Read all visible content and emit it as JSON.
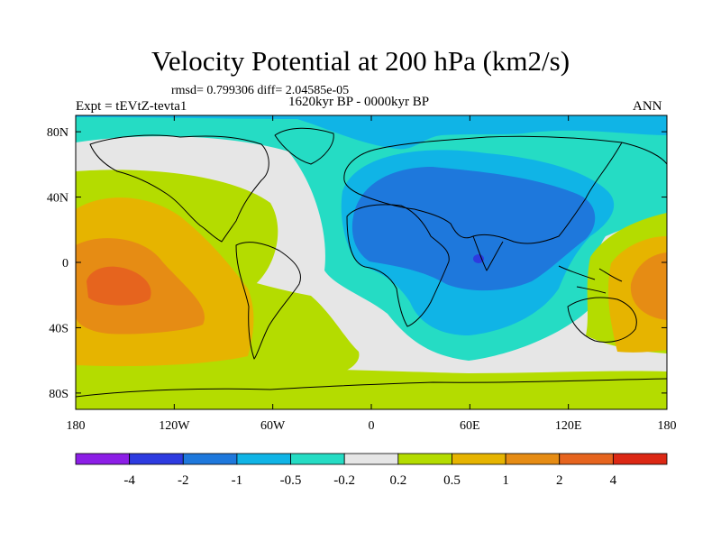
{
  "chart_data": {
    "type": "filled contour map",
    "title": "Velocity Potential at 200 hPa (km2/s)",
    "stats_line": "rmsd= 0.799306 diff= 2.04585e-05",
    "experiment_label": "Expt = tEVtZ-tevta1",
    "period_label": "1620kyr BP - 0000kyr BP",
    "season_label": "ANN",
    "x_axis": {
      "range": [
        -180,
        180
      ],
      "ticks": [
        -180,
        -120,
        -60,
        0,
        60,
        120,
        180
      ],
      "tick_labels": [
        "180",
        "120W",
        "60W",
        "0",
        "60E",
        "120E",
        "180"
      ]
    },
    "y_axis": {
      "range": [
        -90,
        90
      ],
      "ticks": [
        80,
        40,
        0,
        -40,
        -80
      ],
      "tick_labels": [
        "80N",
        "40N",
        "0",
        "40S",
        "80S"
      ]
    },
    "colorbar": {
      "boundaries": [
        "-4",
        "-2",
        "-1",
        "-0.5",
        "-0.2",
        "0.2",
        "0.5",
        "1",
        "2",
        "4"
      ],
      "colors": [
        "#8c1ee6",
        "#2d3be0",
        "#1e78dc",
        "#10b4e6",
        "#25dcc4",
        "#e6e6e6",
        "#b4dc00",
        "#e6b400",
        "#e68c14",
        "#e6641e",
        "#dc2814"
      ]
    }
  }
}
